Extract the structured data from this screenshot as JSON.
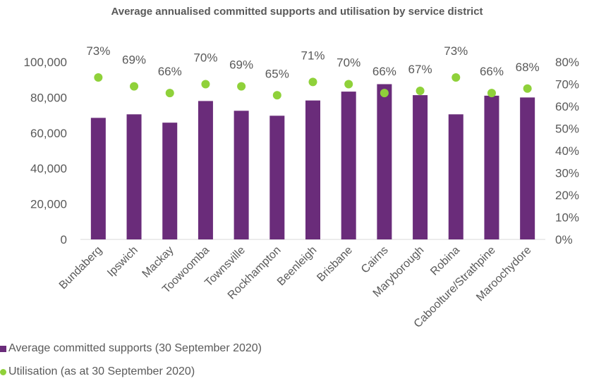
{
  "chart_data": {
    "type": "bar",
    "title": "Average annualised committed supports and utilisation by service district",
    "categories": [
      "Bundaberg",
      "Ipswich",
      "Mackay",
      "Toowoomba",
      "Townsville",
      "Rockhampton",
      "Beenleigh",
      "Brisbane",
      "Cairns",
      "Maryborough",
      "Robina",
      "Caboolture/Strathpine",
      "Maroochydore"
    ],
    "series": [
      {
        "name": "Average committed supports (30 September 2020)",
        "type": "bar",
        "axis": "left",
        "color": "#6a2c7a",
        "values": [
          68500,
          70500,
          65800,
          78000,
          72500,
          69700,
          78300,
          83300,
          87500,
          81300,
          70500,
          81000,
          80000
        ]
      },
      {
        "name": "Utilisation (as at 30 September 2020)",
        "type": "scatter",
        "axis": "right",
        "color": "#8fd13a",
        "values": [
          0.73,
          0.69,
          0.66,
          0.7,
          0.69,
          0.65,
          0.71,
          0.7,
          0.66,
          0.67,
          0.73,
          0.66,
          0.68
        ],
        "labels": [
          "73%",
          "69%",
          "66%",
          "70%",
          "69%",
          "65%",
          "71%",
          "70%",
          "66%",
          "67%",
          "73%",
          "66%",
          "68%"
        ]
      }
    ],
    "yaxis_left": {
      "min": 0,
      "max": 100000,
      "step": 20000,
      "ticks": [
        "0",
        "20,000",
        "40,000",
        "60,000",
        "80,000",
        "100,000"
      ]
    },
    "yaxis_right": {
      "min": 0,
      "max": 0.8,
      "step": 0.1,
      "ticks": [
        "0%",
        "10%",
        "20%",
        "30%",
        "40%",
        "50%",
        "60%",
        "70%",
        "80%"
      ]
    },
    "grid": false,
    "legend_position": "bottom-left"
  }
}
